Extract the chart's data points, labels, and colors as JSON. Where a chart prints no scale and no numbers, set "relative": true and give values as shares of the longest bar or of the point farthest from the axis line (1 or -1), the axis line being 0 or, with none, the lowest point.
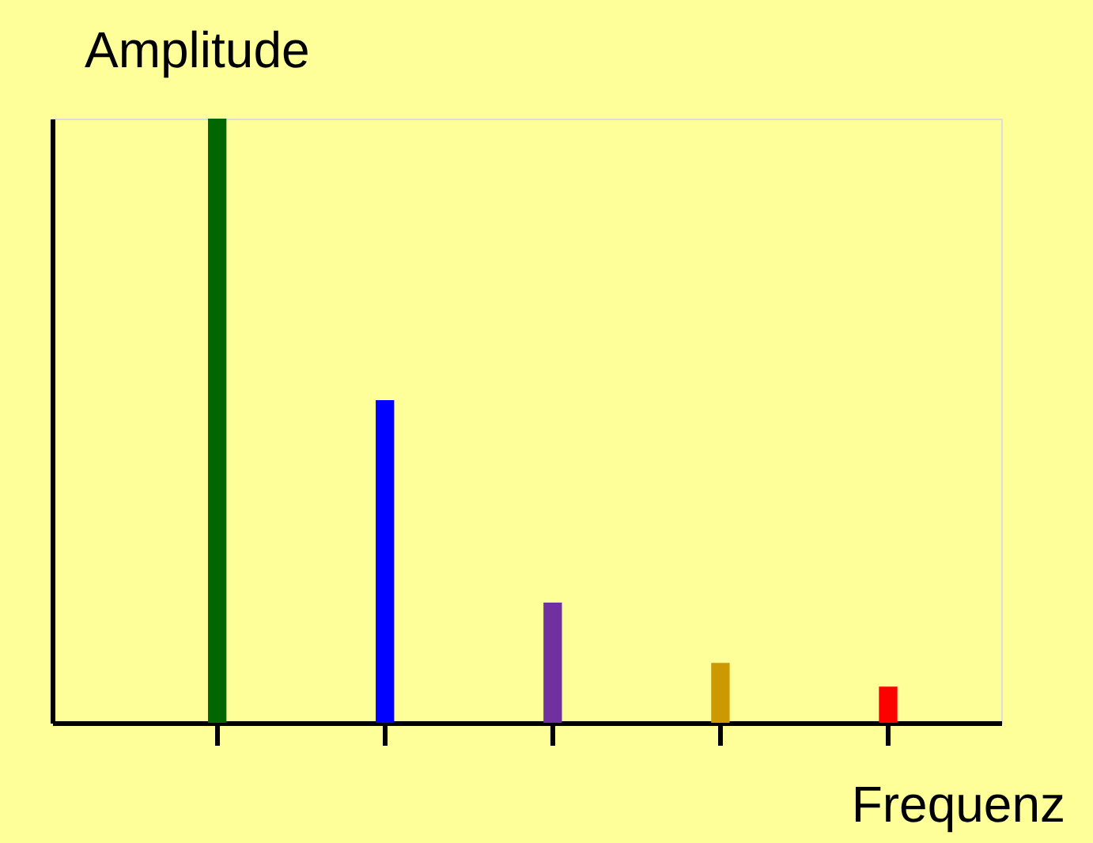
{
  "chart_data": {
    "type": "bar",
    "relative": true,
    "xlabel": "Frequenz",
    "ylabel": "Amplitude",
    "categories": [
      null,
      null,
      null,
      null,
      null
    ],
    "values": [
      1,
      0.534,
      0.199,
      0.099,
      0.06
    ],
    "colors": [
      "#006600",
      "#0000ff",
      "#7030a0",
      "#cc9900",
      "#ff0000"
    ]
  }
}
